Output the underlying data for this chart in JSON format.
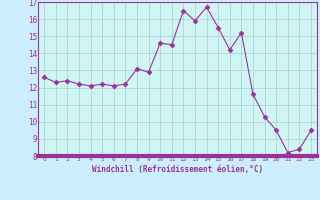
{
  "x": [
    0,
    1,
    2,
    3,
    4,
    5,
    6,
    7,
    8,
    9,
    10,
    11,
    12,
    13,
    14,
    15,
    16,
    17,
    18,
    19,
    20,
    21,
    22,
    23
  ],
  "y": [
    12.6,
    12.3,
    12.4,
    12.2,
    12.1,
    12.2,
    12.1,
    12.2,
    13.1,
    12.9,
    14.6,
    14.5,
    16.5,
    15.9,
    16.7,
    15.5,
    14.2,
    15.2,
    11.6,
    10.3,
    9.5,
    8.2,
    8.4,
    9.5
  ],
  "line_color": "#993399",
  "marker": "D",
  "marker_size": 2.5,
  "bg_color": "#cceeff",
  "plot_bg_color": "#cff5f5",
  "grid_color": "#aacccc",
  "xlabel": "Windchill (Refroidissement éolien,°C)",
  "ylim": [
    8,
    17
  ],
  "xlim": [
    -0.5,
    23.5
  ],
  "yticks": [
    8,
    9,
    10,
    11,
    12,
    13,
    14,
    15,
    16,
    17
  ],
  "xticks": [
    0,
    1,
    2,
    3,
    4,
    5,
    6,
    7,
    8,
    9,
    10,
    11,
    12,
    13,
    14,
    15,
    16,
    17,
    18,
    19,
    20,
    21,
    22,
    23
  ],
  "line_color2": "#993399",
  "tick_color": "#993399",
  "xlabel_color": "#993399",
  "spine_color": "#993399",
  "bottom_bar_color": "#993399",
  "linewidth": 0.8
}
